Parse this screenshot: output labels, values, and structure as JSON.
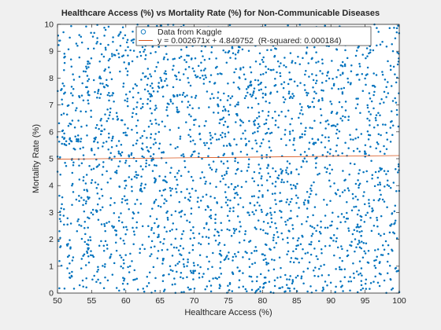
{
  "chart_data": {
    "type": "scatter",
    "title": "Healthcare Access (%) vs Mortality Rate (%) for Non-Communicable Diseases",
    "xlabel": "Healthcare Access (%)",
    "ylabel": "Mortality Rate (%)",
    "xlim": [
      50,
      100
    ],
    "ylim": [
      0,
      10
    ],
    "xticks": [
      50,
      55,
      60,
      65,
      70,
      75,
      80,
      85,
      90,
      95,
      100
    ],
    "yticks": [
      0,
      1,
      2,
      3,
      4,
      5,
      6,
      7,
      8,
      9,
      10
    ],
    "grid": false,
    "legend_position": "top-right",
    "series": [
      {
        "name": "Data from Kaggle",
        "kind": "scatter",
        "color": "#0072BD",
        "note": "dense, approximately uniform cloud of ~2500 points across the full axis range"
      },
      {
        "name": "y = 0.002671x + 4.849752  (R-squared: 0.000184)",
        "kind": "line",
        "slope": 0.002671,
        "intercept": 4.849752,
        "color": "#D95319"
      }
    ]
  }
}
